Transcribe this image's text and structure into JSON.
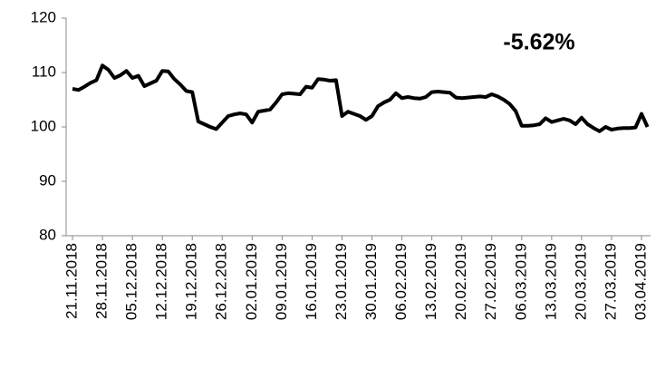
{
  "chart_data": {
    "type": "line",
    "annotation": "-5.62%",
    "categories": [
      "21.11.2018",
      null,
      null,
      null,
      null,
      "28.11.2018",
      null,
      null,
      null,
      null,
      "05.12.2018",
      null,
      null,
      null,
      null,
      "12.12.2018",
      null,
      null,
      null,
      null,
      "19.12.2018",
      null,
      null,
      null,
      null,
      "26.12.2018",
      null,
      null,
      null,
      null,
      "02.01.2019",
      null,
      null,
      null,
      null,
      "09.01.2019",
      null,
      null,
      null,
      null,
      "16.01.2019",
      null,
      null,
      null,
      null,
      "23.01.2019",
      null,
      null,
      null,
      null,
      "30.01.2019",
      null,
      null,
      null,
      null,
      "06.02.2019",
      null,
      null,
      null,
      null,
      "13.02.2019",
      null,
      null,
      null,
      null,
      "20.02.2019",
      null,
      null,
      null,
      null,
      "27.02.2019",
      null,
      null,
      null,
      null,
      "06.03.2019",
      null,
      null,
      null,
      null,
      "13.03.2019",
      null,
      null,
      null,
      null,
      "20.03.2019",
      null,
      null,
      null,
      null,
      "27.03.2019",
      null,
      null,
      null,
      null,
      "03.04.2019",
      null
    ],
    "values": [
      107,
      106.8,
      107.4,
      108.1,
      108.6,
      111.3,
      110.5,
      109,
      109.5,
      110.3,
      109,
      109.4,
      107.5,
      108,
      108.5,
      110.3,
      110.2,
      108.8,
      107.8,
      106.6,
      106.4,
      101,
      100.5,
      100,
      99.6,
      100.8,
      102,
      102.3,
      102.5,
      102.3,
      100.8,
      102.8,
      103,
      103.2,
      104.5,
      106,
      106.2,
      106.1,
      106,
      107.4,
      107.2,
      108.8,
      108.7,
      108.5,
      108.6,
      102,
      102.8,
      102.4,
      102,
      101.3,
      102,
      103.8,
      104.5,
      105,
      106.2,
      105.3,
      105.5,
      105.3,
      105.2,
      105.5,
      106.4,
      106.5,
      106.4,
      106.3,
      105.4,
      105.3,
      105.4,
      105.5,
      105.6,
      105.5,
      106,
      105.6,
      105,
      104.2,
      102.9,
      100.2,
      100.2,
      100.3,
      100.5,
      101.6,
      100.9,
      101.2,
      101.5,
      101.2,
      100.5,
      101.7,
      100.5,
      99.8,
      99.2,
      100,
      99.5,
      99.7,
      99.8,
      99.8,
      99.9,
      102.4,
      100
    ],
    "color": "#000000",
    "ylim": [
      80,
      120
    ],
    "yticks": [
      80,
      90,
      100,
      110,
      120
    ],
    "grid": false
  }
}
